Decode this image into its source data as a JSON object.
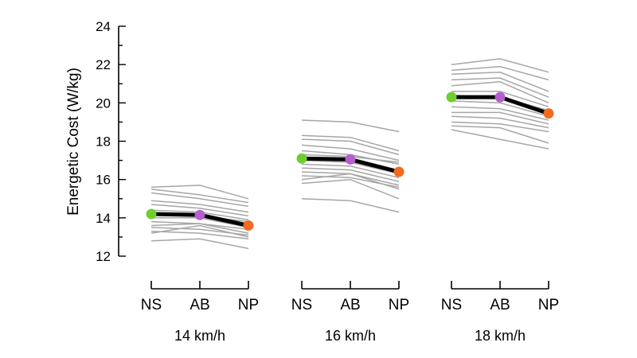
{
  "chart_data": {
    "type": "line",
    "ylabel": "Energetic Cost (W/kg)",
    "ylim": [
      12,
      24
    ],
    "y_ticks": [
      12,
      14,
      16,
      18,
      20,
      22,
      24
    ],
    "grid": false,
    "categories": [
      "NS",
      "AB",
      "NP"
    ],
    "colors": {
      "NS": "#6fce2f",
      "AB": "#b65fd0",
      "NP": "#f26b1d",
      "individual": "#a6a6a6",
      "mean": "#000000"
    },
    "groups": [
      {
        "label": "14 km/h",
        "mean": [
          14.2,
          14.15,
          13.6
        ],
        "individuals": [
          [
            15.6,
            15.7,
            15.0
          ],
          [
            15.5,
            15.2,
            14.8
          ],
          [
            15.3,
            15.0,
            14.6
          ],
          [
            14.9,
            14.7,
            14.3
          ],
          [
            14.7,
            14.5,
            14.1
          ],
          [
            14.4,
            14.3,
            13.9
          ],
          [
            14.2,
            14.1,
            13.8
          ],
          [
            14.0,
            14.0,
            13.5
          ],
          [
            13.8,
            13.7,
            13.4
          ],
          [
            13.6,
            13.7,
            13.2
          ],
          [
            13.5,
            13.4,
            13.1
          ],
          [
            13.3,
            13.2,
            12.9
          ],
          [
            13.2,
            13.6,
            13.0
          ],
          [
            12.8,
            12.9,
            12.4
          ]
        ]
      },
      {
        "label": "16 km/h",
        "mean": [
          17.1,
          17.05,
          16.4
        ],
        "individuals": [
          [
            19.1,
            19.0,
            18.5
          ],
          [
            18.3,
            18.2,
            17.5
          ],
          [
            18.1,
            18.0,
            17.3
          ],
          [
            17.8,
            17.6,
            17.0
          ],
          [
            17.5,
            17.3,
            16.8
          ],
          [
            17.3,
            17.2,
            16.9
          ],
          [
            17.0,
            16.9,
            16.3
          ],
          [
            16.8,
            16.7,
            16.1
          ],
          [
            16.6,
            16.5,
            15.9
          ],
          [
            16.4,
            16.3,
            15.7
          ],
          [
            16.2,
            16.1,
            15.6
          ],
          [
            16.0,
            16.3,
            15.5
          ],
          [
            15.8,
            16.0,
            15.0
          ],
          [
            15.0,
            14.9,
            14.3
          ]
        ]
      },
      {
        "label": "18 km/h",
        "mean": [
          20.3,
          20.3,
          19.45
        ],
        "individuals": [
          [
            22.0,
            22.3,
            21.6
          ],
          [
            21.7,
            21.9,
            21.2
          ],
          [
            21.5,
            21.6,
            20.6
          ],
          [
            21.2,
            21.3,
            20.3
          ],
          [
            20.9,
            21.1,
            20.0
          ],
          [
            20.6,
            20.6,
            19.8
          ],
          [
            20.4,
            20.3,
            19.6
          ],
          [
            20.1,
            20.0,
            19.3
          ],
          [
            19.8,
            19.7,
            19.1
          ],
          [
            19.5,
            19.5,
            18.9
          ],
          [
            19.3,
            19.2,
            18.7
          ],
          [
            19.0,
            18.9,
            18.5
          ],
          [
            18.8,
            18.7,
            17.9
          ],
          [
            18.6,
            18.1,
            17.6
          ]
        ]
      }
    ]
  }
}
